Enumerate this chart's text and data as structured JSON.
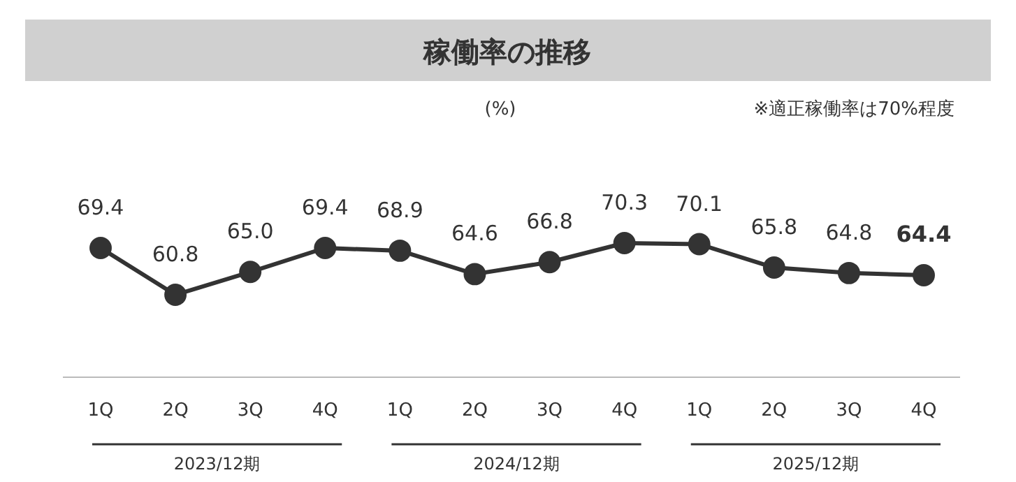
{
  "chart_data": {
    "type": "line",
    "title": "稼働率の推移",
    "annotations": [
      "(%)",
      "※適正稼働率は70%程度",
      "2023/12期",
      "2024/12期",
      "2025/12期"
    ],
    "categories": [
      "1Q",
      "2Q",
      "3Q",
      "4Q",
      "1Q",
      "2Q",
      "3Q",
      "4Q",
      "1Q",
      "2Q",
      "3Q",
      "4Q"
    ],
    "series": [
      {
        "color": "#333333",
        "values": [
          69.4,
          60.8,
          65.0,
          69.4,
          68.9,
          64.6,
          66.8,
          70.3,
          70.1,
          65.8,
          64.8,
          64.4
        ],
        "value_labels": [
          "69.4",
          "60.8",
          "65.0",
          "69.4",
          "68.9",
          "64.6",
          "66.8",
          "70.3",
          "70.1",
          "65.8",
          "64.8",
          "64.4"
        ]
      }
    ],
    "marker": "circle",
    "line_style": "solid"
  }
}
